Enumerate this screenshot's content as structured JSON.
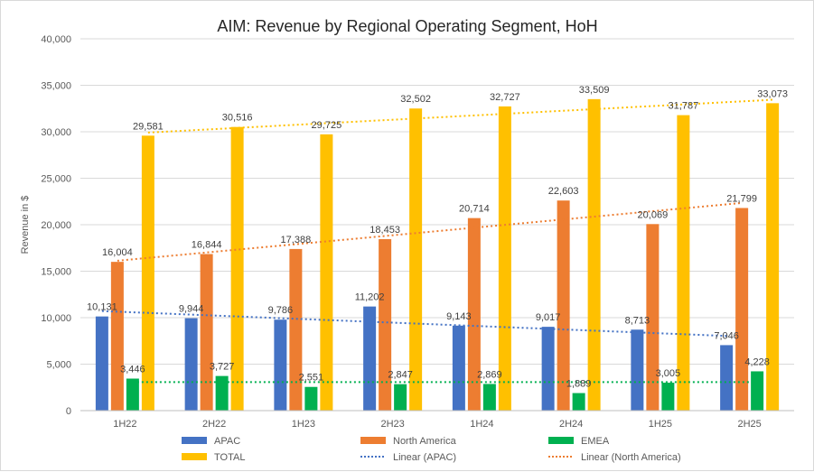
{
  "chart_data": {
    "type": "bar",
    "title": "AIM: Revenue by Regional Operating Segment, HoH",
    "ylabel": "Revenue in $",
    "xlabel": "",
    "ylim": [
      0,
      40000
    ],
    "yticks": [
      0,
      5000,
      10000,
      15000,
      20000,
      25000,
      30000,
      35000,
      40000
    ],
    "ytick_labels": [
      "0",
      "5,000",
      "10,000",
      "15,000",
      "20,000",
      "25,000",
      "30,000",
      "35,000",
      "40,000"
    ],
    "grid": true,
    "categories": [
      "1H22",
      "2H22",
      "1H23",
      "2H23",
      "1H24",
      "2H24",
      "1H25",
      "2H25"
    ],
    "series": [
      {
        "name": "APAC",
        "color": "#4472c4",
        "values": [
          10131,
          9944,
          9786,
          11202,
          9143,
          9017,
          8713,
          7046
        ],
        "labels": [
          "10,131",
          "9,944",
          "9,786",
          "11,202",
          "9,143",
          "9,017",
          "8,713",
          "7,046"
        ]
      },
      {
        "name": "North America",
        "color": "#ed7d31",
        "values": [
          16004,
          16844,
          17388,
          18453,
          20714,
          22603,
          20069,
          21799
        ],
        "labels": [
          "16,004",
          "16,844",
          "17,388",
          "18,453",
          "20,714",
          "22,603",
          "20,069",
          "21,799"
        ]
      },
      {
        "name": "EMEA",
        "color": "#00b050",
        "values": [
          3446,
          3727,
          2551,
          2847,
          2869,
          1889,
          3005,
          4228
        ],
        "labels": [
          "3,446",
          "3,727",
          "2,551",
          "2,847",
          "2,869",
          "1,889",
          "3,005",
          "4,228"
        ]
      },
      {
        "name": "TOTAL",
        "color": "#ffc000",
        "values": [
          29581,
          30516,
          29725,
          32502,
          32727,
          33509,
          31787,
          33073
        ],
        "labels": [
          "29,581",
          "30,516",
          "29,725",
          "32,502",
          "32,727",
          "33,509",
          "31,787",
          "33,073"
        ]
      }
    ],
    "trendlines": [
      {
        "name": "Linear (APAC)",
        "series": "APAC",
        "color": "#4472c4"
      },
      {
        "name": "Linear (North America)",
        "series": "North America",
        "color": "#ed7d31"
      },
      {
        "name": "",
        "series": "EMEA",
        "color": "#00b050"
      },
      {
        "name": "",
        "series": "TOTAL",
        "color": "#ffc000"
      }
    ],
    "legend": "bottom"
  }
}
